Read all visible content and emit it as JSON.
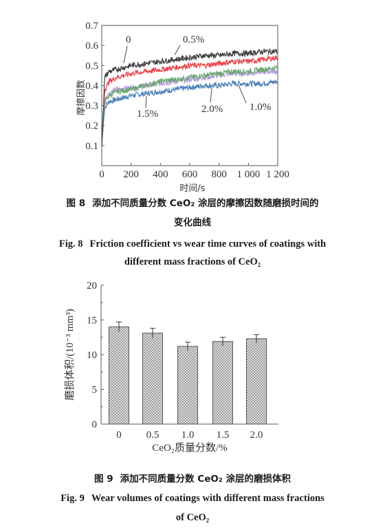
{
  "chart_data": [
    {
      "type": "line",
      "x_ticks": [
        "0",
        "200",
        "400",
        "600",
        "800",
        "1 000",
        "1 200"
      ],
      "y_ticks": [
        "0.1",
        "0.2",
        "0.3",
        "0.4",
        "0.5",
        "0.6",
        "0.7"
      ],
      "xlabel": "时间/s",
      "ylabel": "摩擦因数",
      "xlim": [
        0,
        1200
      ],
      "ylim": [
        0,
        0.7
      ],
      "series": [
        {
          "name": "0",
          "color": "#3d3d3d",
          "x": [
            0,
            20,
            50,
            100,
            200,
            300,
            400,
            500,
            600,
            700,
            800,
            900,
            1000,
            1100,
            1200
          ],
          "y": [
            0.1,
            0.44,
            0.47,
            0.48,
            0.5,
            0.51,
            0.52,
            0.53,
            0.54,
            0.55,
            0.55,
            0.56,
            0.56,
            0.57,
            0.57
          ]
        },
        {
          "name": "0.5%",
          "color": "#e8444a",
          "x": [
            0,
            20,
            50,
            100,
            200,
            300,
            400,
            500,
            600,
            700,
            800,
            900,
            1000,
            1100,
            1200
          ],
          "y": [
            0.1,
            0.38,
            0.42,
            0.44,
            0.46,
            0.47,
            0.48,
            0.49,
            0.5,
            0.5,
            0.51,
            0.52,
            0.52,
            0.53,
            0.54
          ]
        },
        {
          "name": "1.0%",
          "color": "#4a7fb8",
          "x": [
            0,
            20,
            50,
            100,
            200,
            300,
            400,
            500,
            600,
            700,
            800,
            900,
            1000,
            1100,
            1200
          ],
          "y": [
            0.1,
            0.29,
            0.32,
            0.33,
            0.35,
            0.36,
            0.37,
            0.38,
            0.39,
            0.4,
            0.4,
            0.41,
            0.41,
            0.41,
            0.42
          ]
        },
        {
          "name": "1.5%",
          "color": "#b99ae0",
          "x": [
            0,
            20,
            50,
            100,
            200,
            300,
            400,
            500,
            600,
            700,
            800,
            900,
            1000,
            1100,
            1200
          ],
          "y": [
            0.1,
            0.33,
            0.36,
            0.38,
            0.39,
            0.4,
            0.41,
            0.42,
            0.43,
            0.44,
            0.45,
            0.46,
            0.46,
            0.47,
            0.47
          ]
        },
        {
          "name": "2.0%",
          "color": "#6aa86f",
          "x": [
            0,
            20,
            50,
            100,
            200,
            300,
            400,
            500,
            600,
            700,
            800,
            900,
            1000,
            1100,
            1200
          ],
          "y": [
            0.1,
            0.32,
            0.35,
            0.37,
            0.38,
            0.4,
            0.42,
            0.43,
            0.44,
            0.45,
            0.46,
            0.47,
            0.47,
            0.48,
            0.49
          ]
        }
      ],
      "annotations": [
        "0",
        "0.5%",
        "1.5%",
        "2.0%",
        "1.0%"
      ]
    },
    {
      "type": "bar",
      "categories": [
        "0",
        "0.5",
        "1.0",
        "1.5",
        "2.0"
      ],
      "values": [
        14.0,
        13.1,
        11.2,
        11.9,
        12.3
      ],
      "errors": [
        0.7,
        0.7,
        0.6,
        0.6,
        0.6
      ],
      "y_ticks": [
        "0",
        "5",
        "10",
        "15",
        "20"
      ],
      "ylim": [
        0,
        20
      ],
      "xlabel": "CeO₂质量分数/%",
      "ylabel": "磨损体积/(10⁻³ mm³)"
    }
  ],
  "captions": {
    "fig8_cn_no": "图 8",
    "fig8_cn_text": "添加不同质量分数 CeO₂ 涂层的摩擦因数随磨损时间的",
    "fig8_cn_text2": "变化曲线",
    "fig8_en_no": "Fig. 8",
    "fig8_en_text": "Friction coefficient vs wear time curves of coatings with",
    "fig8_en_text2": "different mass fractions of CeO₂",
    "fig9_cn_no": "图 9",
    "fig9_cn_text": "添加不同质量分数 CeO₂ 涂层的磨损体积",
    "fig9_en_no": "Fig. 9",
    "fig9_en_text": "Wear volumes of coatings with different mass fractions",
    "fig9_en_text2": "of CeO₂"
  }
}
